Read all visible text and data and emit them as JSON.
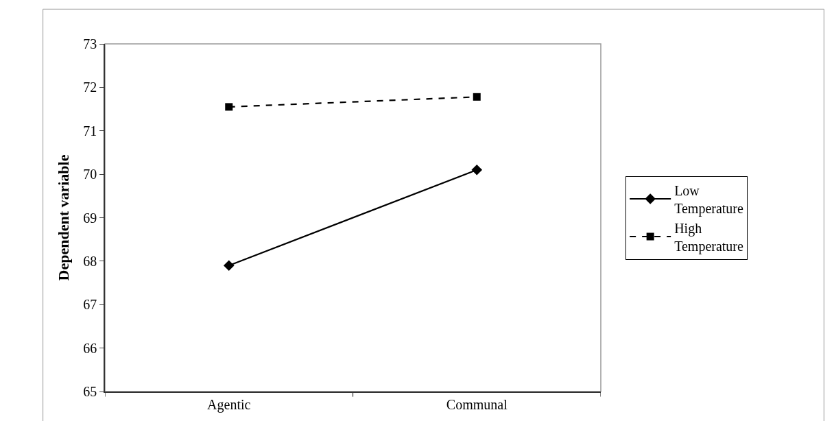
{
  "chart_data": {
    "type": "line",
    "ylabel": "Dependent variable",
    "categories": [
      "Agentic",
      "Communal"
    ],
    "series": [
      {
        "name": "Low Temperature",
        "color": "#000000",
        "values": [
          67.9,
          70.1
        ],
        "marker": "diamond",
        "line_style": "solid"
      },
      {
        "name": "High Temperature",
        "color": "#000000",
        "values": [
          71.55,
          71.78
        ],
        "marker": "square",
        "line_style": "dashed"
      }
    ],
    "ylim": [
      65,
      73
    ],
    "yticks": [
      65,
      66,
      67,
      68,
      69,
      70,
      71,
      72,
      73
    ],
    "grid": false,
    "legend": "right"
  }
}
